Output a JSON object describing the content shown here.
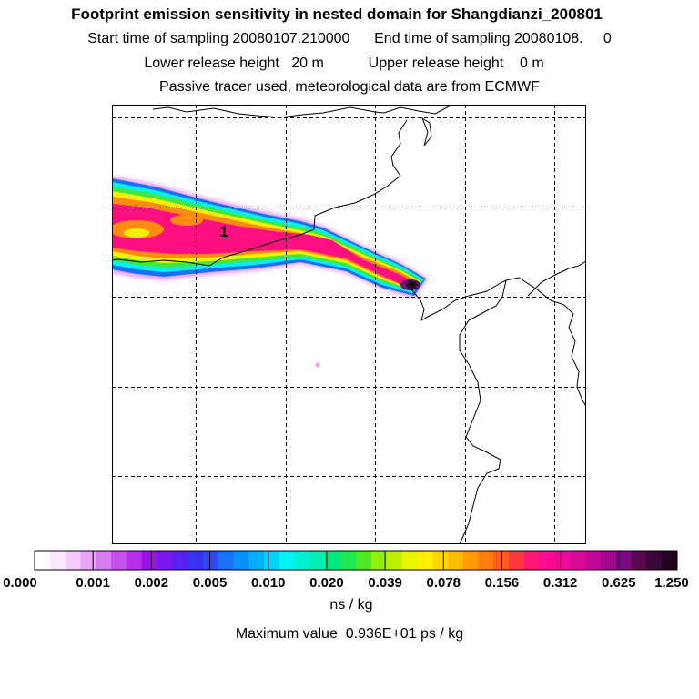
{
  "titles": {
    "line1": "Footprint emission sensitivity in nested domain for Shangdianzi_200801",
    "line2": "Start time of sampling 20080107.210000      End time of sampling 20080108.     0",
    "line3": "Lower release height   20 m           Upper release height    0 m",
    "line4": "Passive tracer used, meteorological data are from ECMWF"
  },
  "map": {
    "release_marker_label": "1"
  },
  "colorbar": {
    "tick_labels": [
      "0.000",
      "0.001",
      "0.002",
      "0.005",
      "0.010",
      "0.020",
      "0.039",
      "0.078",
      "0.156",
      "0.312",
      "0.625",
      "1.250"
    ],
    "colors": [
      "#ffffff",
      "#fbe8ff",
      "#f4ccfb",
      "#e9a6f8",
      "#d77cf2",
      "#c452ee",
      "#b630ea",
      "#9e10e8",
      "#7a18f0",
      "#5a20f0",
      "#3a30f0",
      "#2c48f4",
      "#1a70f4",
      "#0a90f8",
      "#00b0fc",
      "#00d4ff",
      "#00f4f4",
      "#00f0d0",
      "#00eeb0",
      "#00e880",
      "#20e850",
      "#50ea20",
      "#90ee10",
      "#c0f000",
      "#e8f400",
      "#fff000",
      "#ffd800",
      "#ffbc00",
      "#ff9c00",
      "#ff7c10",
      "#ff5c20",
      "#ff3840",
      "#ff1870",
      "#ff0a90",
      "#f00898",
      "#d80898",
      "#c00898",
      "#a00890",
      "#7a0880",
      "#58084c",
      "#3a0838",
      "#200420"
    ]
  },
  "unit_label": "ns / kg",
  "max_value_label": "Maximum value  0.936E+01 ps / kg"
}
